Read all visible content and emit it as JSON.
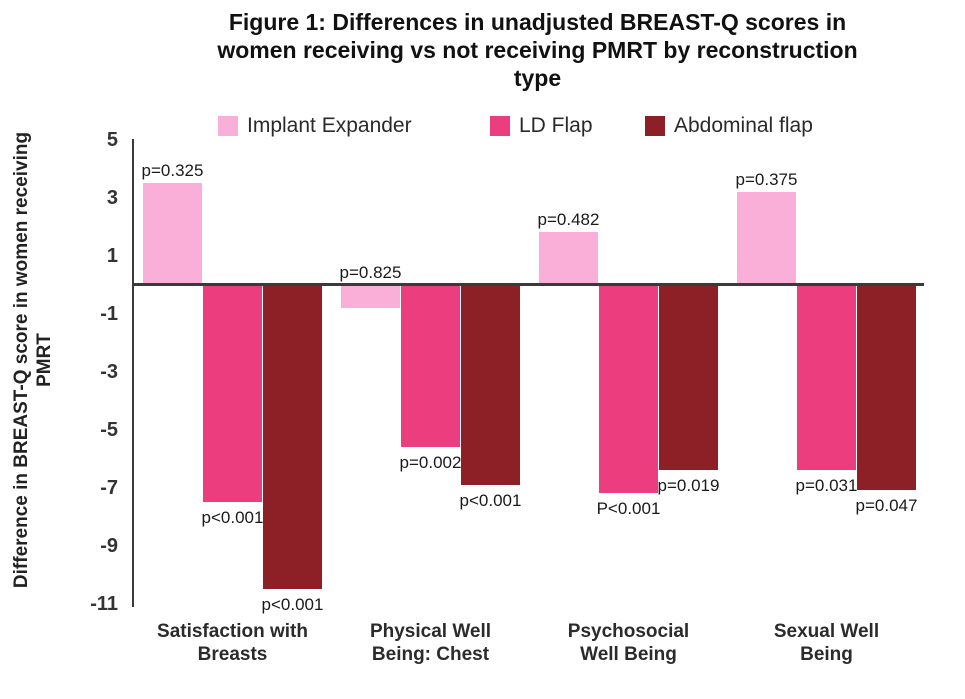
{
  "figure": {
    "title": "Figure 1: Differences in unadjusted BREAST-Q scores in women receiving vs not receiving PMRT by reconstruction type",
    "title_lines": [
      "Figure 1: Differences in unadjusted BREAST-Q scores in",
      "women receiving vs not receiving PMRT by reconstruction",
      "type"
    ]
  },
  "chart_data": {
    "type": "bar",
    "title": "Figure 1: Differences in unadjusted BREAST-Q scores in women receiving vs not receiving PMRT by reconstruction type",
    "categories": [
      "Satisfaction with Breasts",
      "Physical Well Being: Chest",
      "Psychosocial Well Being",
      "Sexual Well Being"
    ],
    "category_lines": [
      [
        "Satisfaction with",
        "Breasts"
      ],
      [
        "Physical Well",
        "Being: Chest"
      ],
      [
        "Psychosocial",
        "Well Being"
      ],
      [
        "Sexual Well",
        "Being"
      ]
    ],
    "series": [
      {
        "name": "Implant Expander",
        "color": "#F9AFD7",
        "values": [
          3.5,
          -0.8,
          1.8,
          3.2
        ],
        "p_values": [
          "p=0.325",
          "p=0.825",
          "p=0.482",
          "p=0.375"
        ],
        "p_position": "above"
      },
      {
        "name": "LD Flap",
        "color": "#EC3D7E",
        "values": [
          -7.5,
          -5.6,
          -7.2,
          -6.4
        ],
        "p_values": [
          "p<0.001",
          "p=0.002",
          "P<0.001",
          "p=0.031"
        ],
        "p_position": "below"
      },
      {
        "name": "Abdominal flap",
        "color": "#8D2026",
        "values": [
          -10.5,
          -6.9,
          -6.4,
          -7.1
        ],
        "p_values": [
          "p<0.001",
          "p<0.001",
          "p=0.019",
          "p=0.047"
        ],
        "p_position": "below"
      }
    ],
    "ylabel": "Difference in BREAST-Q score in women receiving PMRT",
    "ylabel_lines": [
      "Difference in BREAST-Q score in women receiving",
      "PMRT"
    ],
    "xlabel": "",
    "yticks": [
      5,
      3,
      1,
      -1,
      -3,
      -5,
      -7,
      -9,
      -11
    ],
    "ylim": [
      -11.2,
      5.5
    ],
    "grid": false,
    "legend_position": "top",
    "axis_color": "#3A3A3A",
    "text_color": "#1A1A1A"
  }
}
